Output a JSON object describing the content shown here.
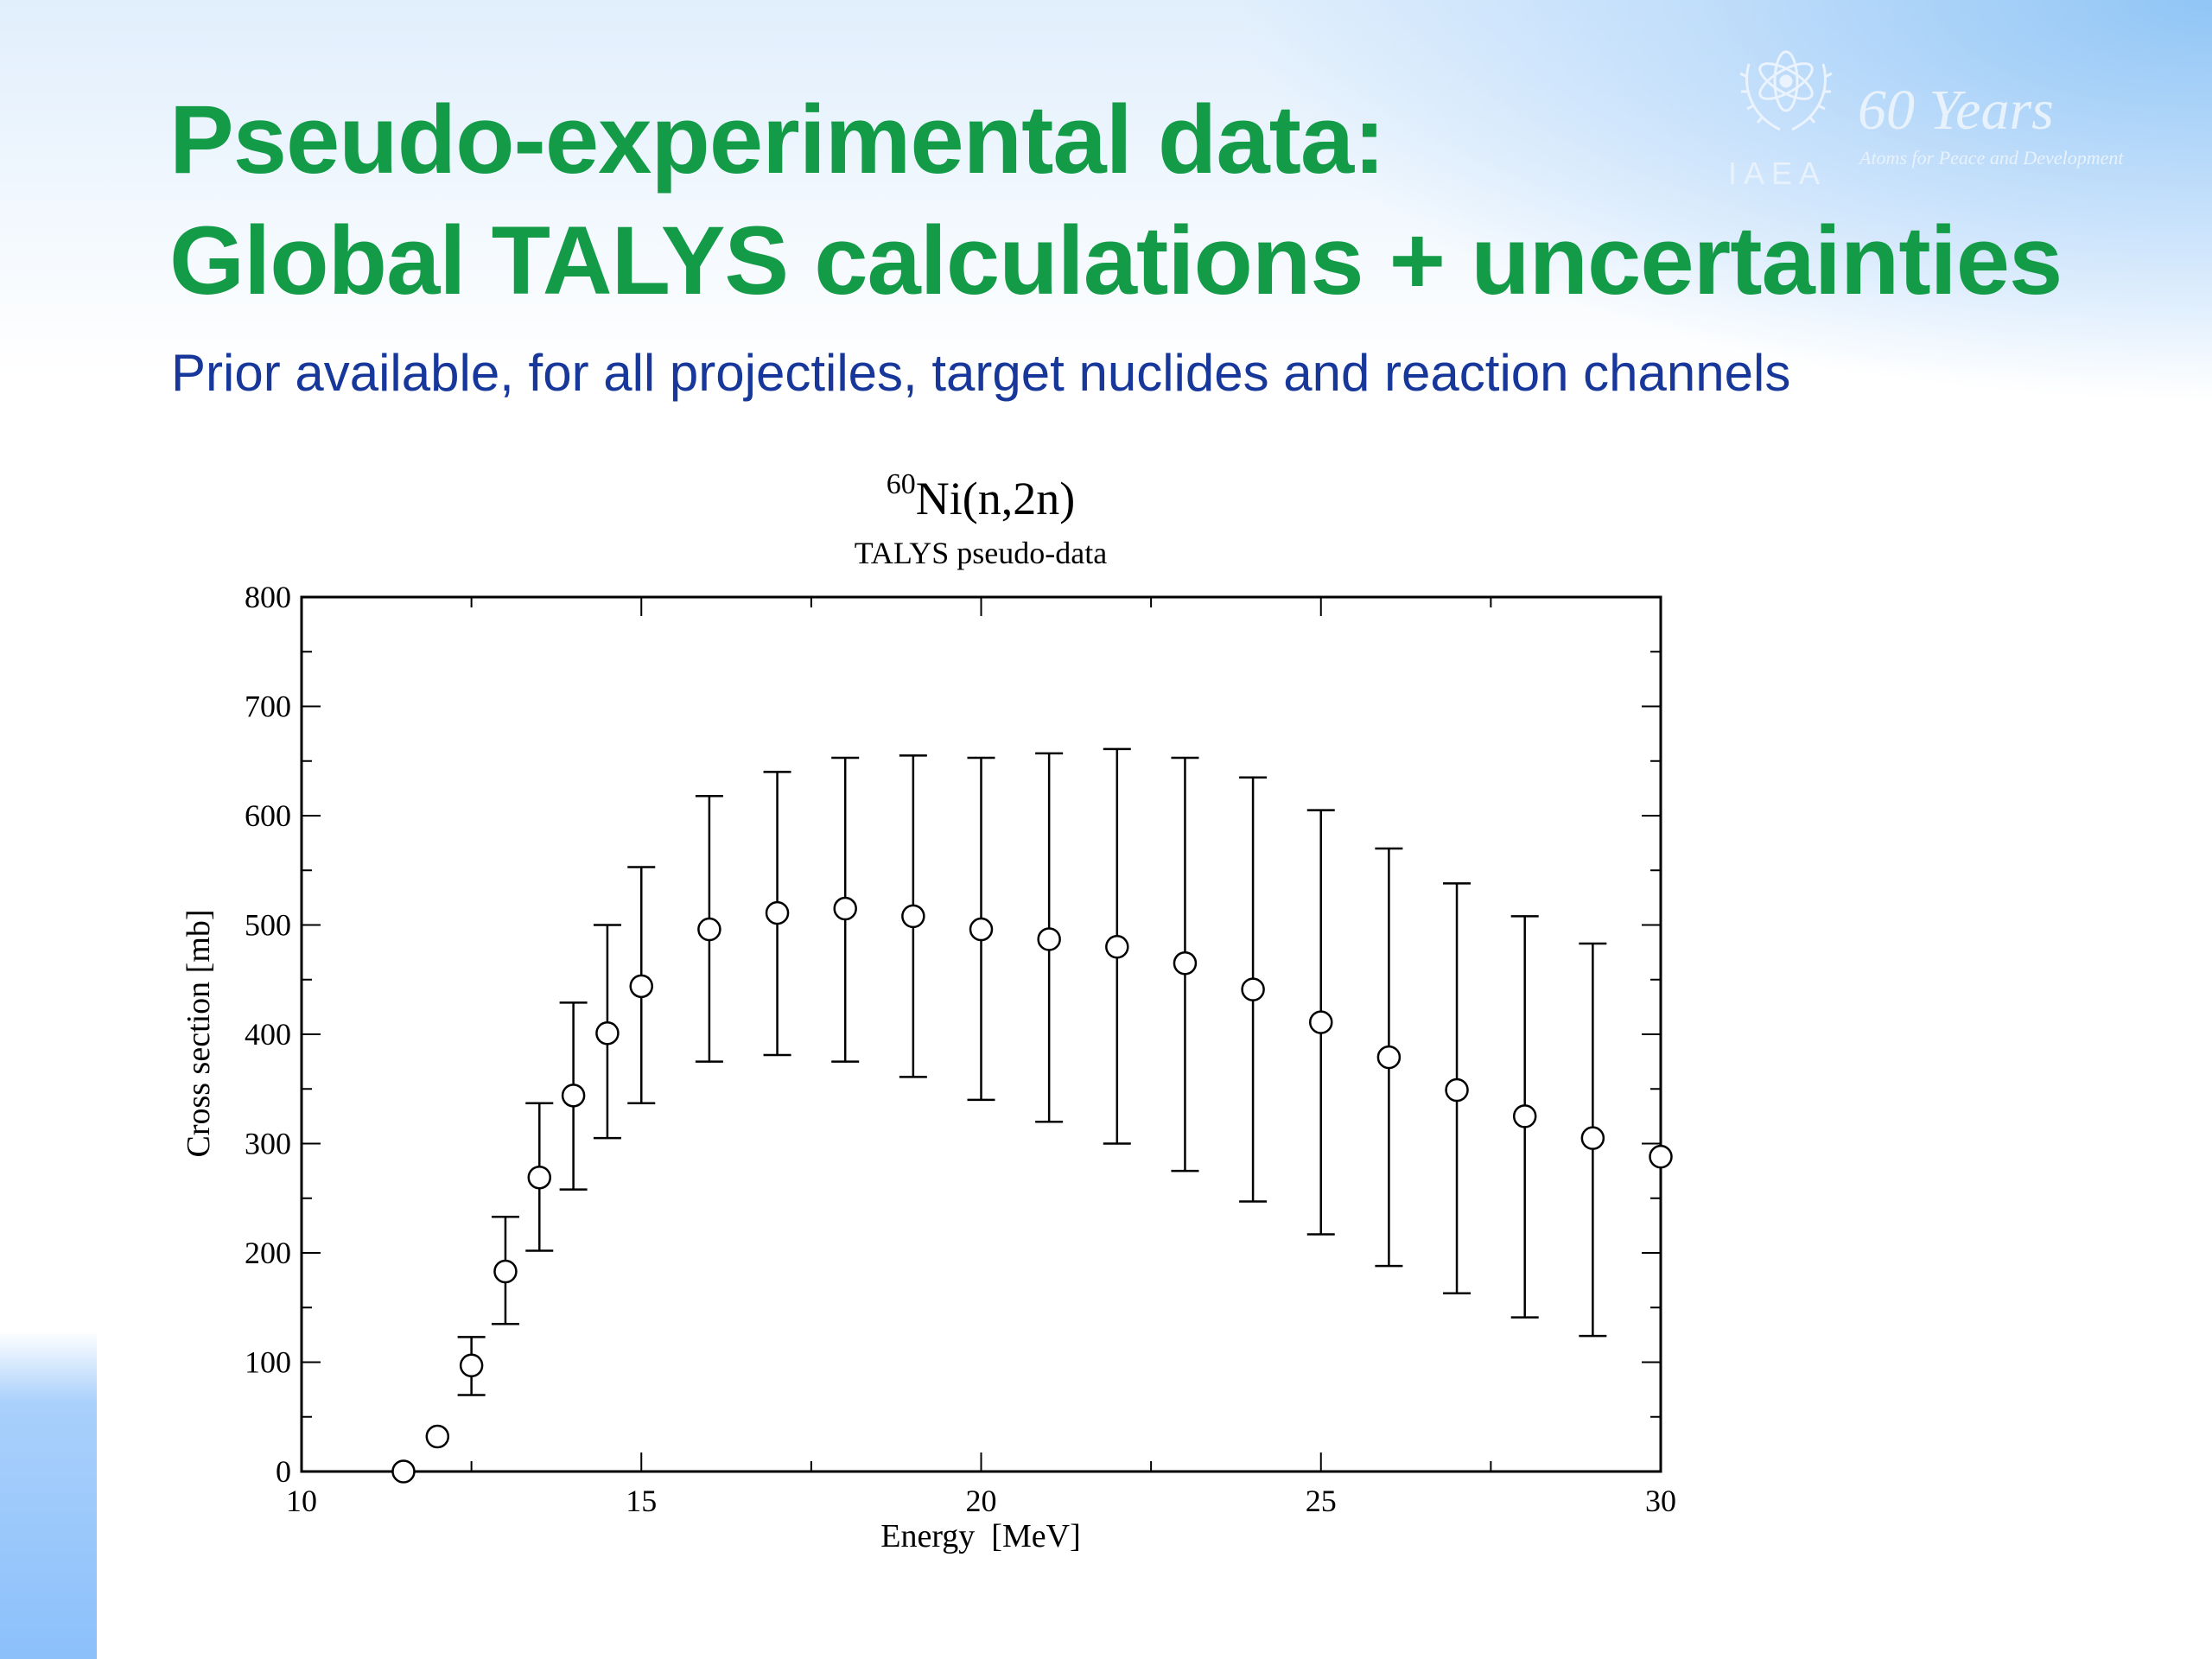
{
  "slide": {
    "title_line1": "Pseudo-experimental data:",
    "title_line2": "Global TALYS calculations + uncertainties",
    "subtitle": "Prior available, for all projectiles, target nuclides and reaction channels",
    "title_color": "#139b48",
    "subtitle_color": "#17389a"
  },
  "logo": {
    "acronym": "IAEA",
    "years": "60 Years",
    "tagline": "Atoms for Peace and Development",
    "icon": "atom-olive-wreath-icon"
  },
  "chart_data": {
    "type": "scatter",
    "title_superscript": "60",
    "title": "Ni(n,2n)",
    "subtitle": "TALYS pseudo-data",
    "xlabel": "Energy  [MeV]",
    "ylabel": "Cross section [mb]",
    "xlim": [
      10,
      30
    ],
    "ylim": [
      0,
      800
    ],
    "x_ticks": [
      "10",
      "15",
      "20",
      "25",
      "30"
    ],
    "y_ticks": [
      "0",
      "100",
      "200",
      "300",
      "400",
      "500",
      "600",
      "700",
      "800"
    ],
    "grid": false,
    "marker": "open-circle",
    "series": [
      {
        "x": [
          11.5,
          12,
          12.5,
          13,
          13.5,
          14,
          14.5,
          15,
          16,
          17,
          18,
          19,
          20,
          21,
          22,
          23,
          24,
          25,
          26,
          27,
          28,
          29,
          30
        ],
        "y": [
          0,
          32,
          97,
          183,
          269,
          344,
          401,
          444,
          496,
          511,
          515,
          508,
          496,
          487,
          480,
          465,
          441,
          411,
          379,
          349,
          325,
          305,
          288
        ],
        "y_low": [
          0,
          28,
          70,
          135,
          202,
          258,
          305,
          337,
          375,
          381,
          375,
          361,
          340,
          320,
          300,
          275,
          247,
          217,
          188,
          163,
          141,
          124,
          null
        ],
        "y_high": [
          0,
          38,
          123,
          233,
          337,
          429,
          500,
          553,
          618,
          640,
          653,
          655,
          653,
          657,
          661,
          653,
          635,
          605,
          570,
          538,
          508,
          483,
          null
        ]
      }
    ]
  }
}
